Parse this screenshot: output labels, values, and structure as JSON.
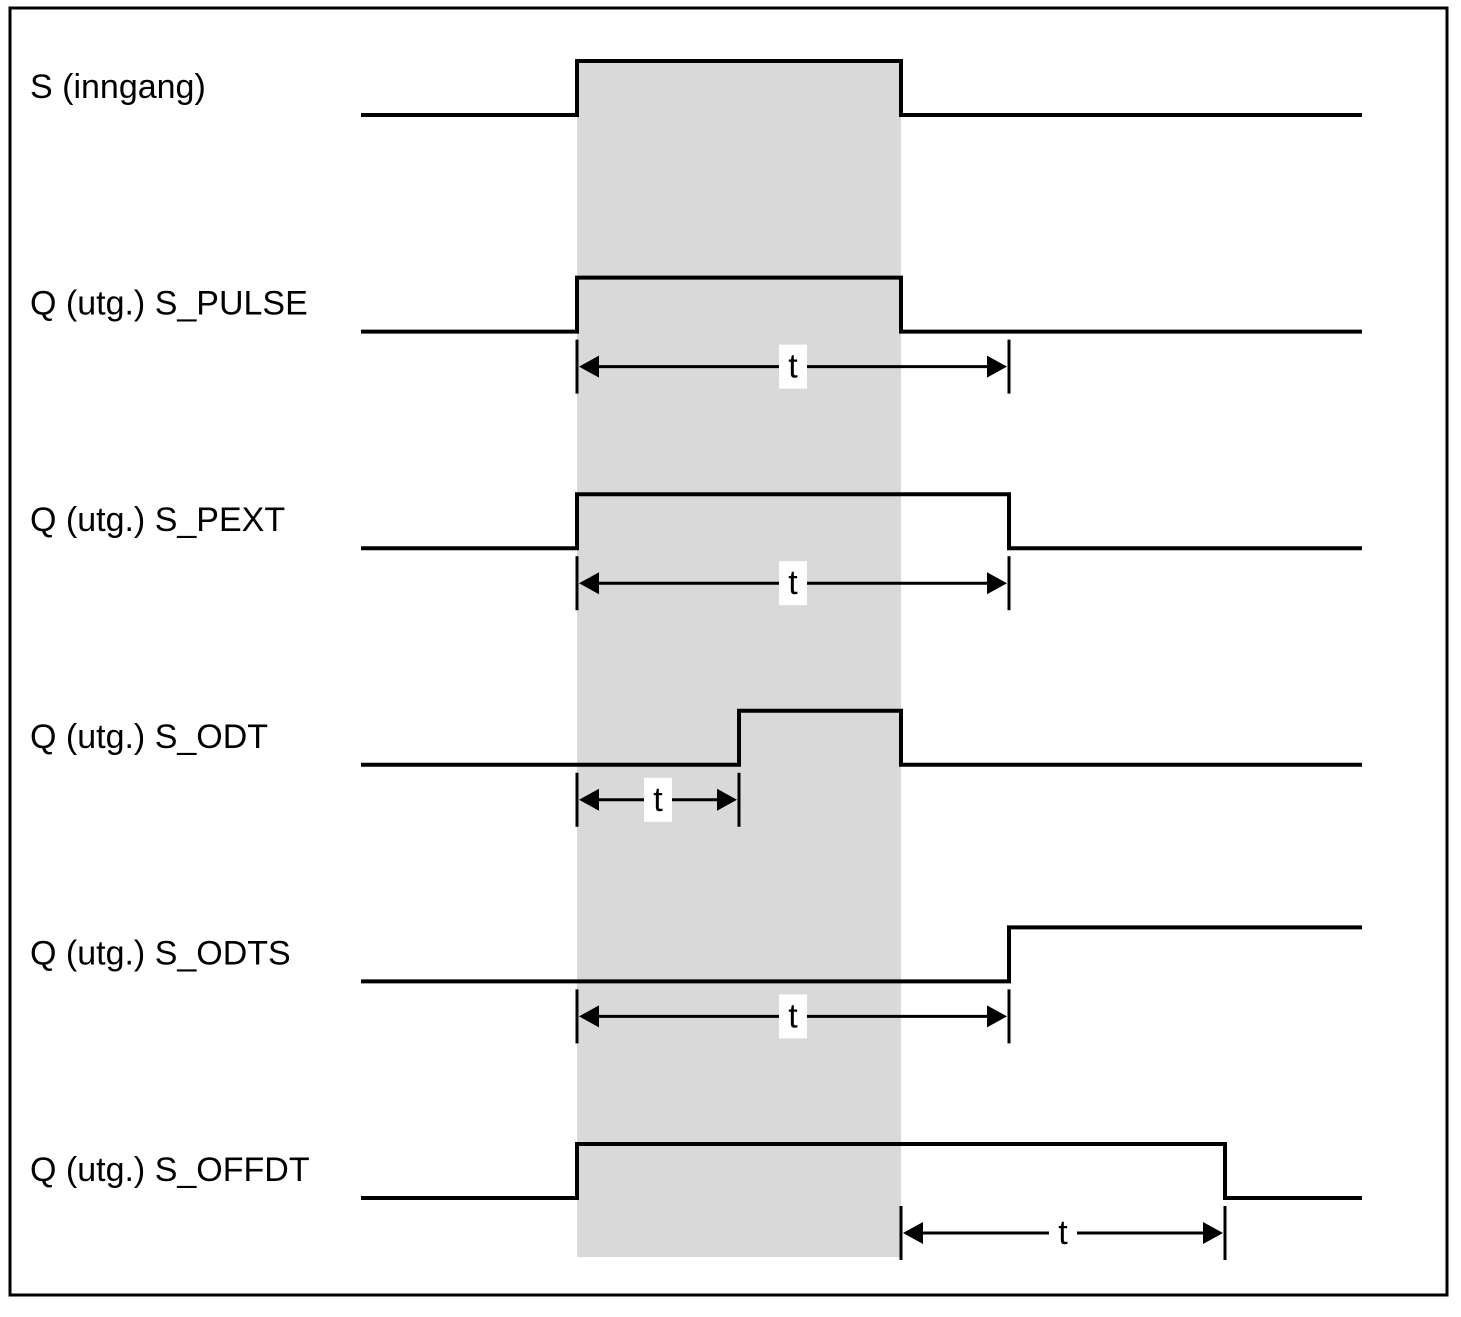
{
  "colors": {
    "frame": "#000000",
    "highlight": "#d9d9d9",
    "signal": "#000000",
    "background": "#ffffff"
  },
  "signals": [
    {
      "id": "s-input",
      "label": "S (inngang)",
      "initial": 0,
      "edges": [
        1,
        2.5
      ],
      "interval": null
    },
    {
      "id": "s-pulse",
      "label": "Q (utg.) S_PULSE",
      "initial": 0,
      "edges": [
        1,
        2.5
      ],
      "interval": {
        "start": 1,
        "end": 3,
        "label": "t"
      }
    },
    {
      "id": "s-pext",
      "label": "Q (utg.) S_PEXT",
      "initial": 0,
      "edges": [
        1,
        3
      ],
      "interval": {
        "start": 1,
        "end": 3,
        "label": "t"
      }
    },
    {
      "id": "s-odt",
      "label": "Q (utg.) S_ODT",
      "initial": 0,
      "edges": [
        1.75,
        2.5
      ],
      "interval": {
        "start": 1,
        "end": 1.75,
        "label": "t"
      }
    },
    {
      "id": "s-odts",
      "label": "Q (utg.) S_ODTS",
      "initial": 0,
      "edges": [
        3
      ],
      "interval": {
        "start": 1,
        "end": 3,
        "label": "t"
      }
    },
    {
      "id": "s-offdt",
      "label": "Q (utg.) S_OFFDT",
      "initial": 0,
      "edges": [
        1,
        4
      ],
      "interval": {
        "start": 2.5,
        "end": 4,
        "label": "t"
      }
    }
  ],
  "highlight_window": {
    "start": 1,
    "end": 2.5
  },
  "time_range": [
    0,
    4.65
  ]
}
